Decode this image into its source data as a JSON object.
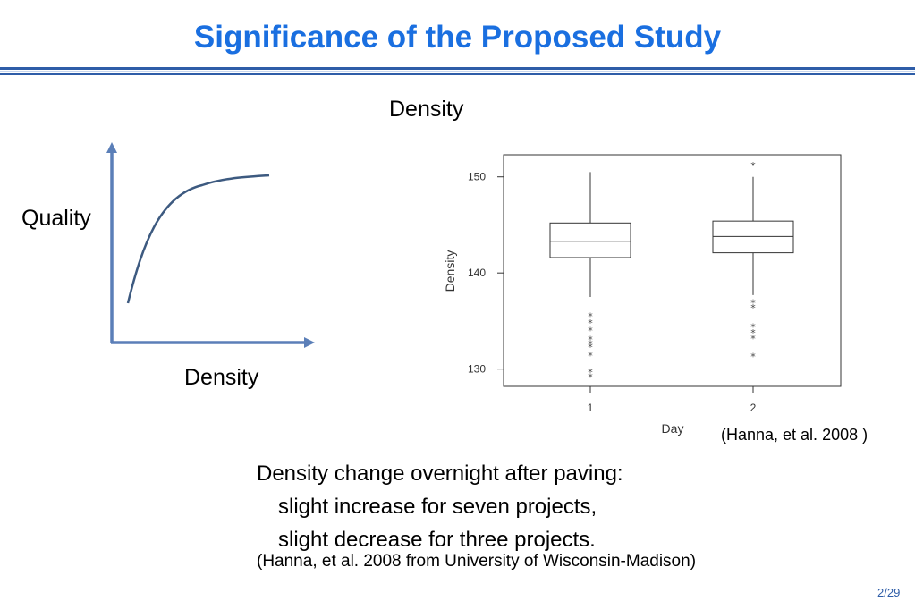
{
  "slide": {
    "title": "Significance of the Proposed Study",
    "page_number": "2/29",
    "accent_color": "#1a6fe0",
    "rule_color": "#2e5da8"
  },
  "sketch": {
    "y_label": "Quality",
    "x_label": "Density",
    "curve_color": "#3d5a80",
    "axis_color": "#5b7fb8"
  },
  "chart_heading": "Density",
  "chart_data": {
    "type": "boxplot",
    "xlabel": "Day",
    "ylabel": "Density",
    "categories": [
      "1",
      "2"
    ],
    "ylim": [
      128.2,
      152.3
    ],
    "yticks": [
      130,
      140,
      150
    ],
    "grid": false,
    "boxes": [
      {
        "category": "1",
        "whisker_low": 137.5,
        "q1": 141.6,
        "median": 143.3,
        "q3": 145.2,
        "whisker_high": 150.5,
        "outliers": [
          135.5,
          134.8,
          134.0,
          133.1,
          132.6,
          132.3,
          131.4,
          129.7,
          129.2
        ]
      },
      {
        "category": "2",
        "whisker_low": 137.7,
        "q1": 142.1,
        "median": 143.8,
        "q3": 145.4,
        "whisker_high": 150.0,
        "outliers": [
          151.2,
          136.9,
          136.4,
          134.4,
          133.8,
          133.2,
          131.3
        ]
      }
    ]
  },
  "chart_citation": "(Hanna, et al. 2008 )",
  "body": {
    "line1": "Density change overnight after paving:",
    "line2": "slight increase for seven projects,",
    "line3": "slight decrease for three projects.",
    "source": "(Hanna, et al. 2008 from University of Wisconsin-Madison)"
  }
}
